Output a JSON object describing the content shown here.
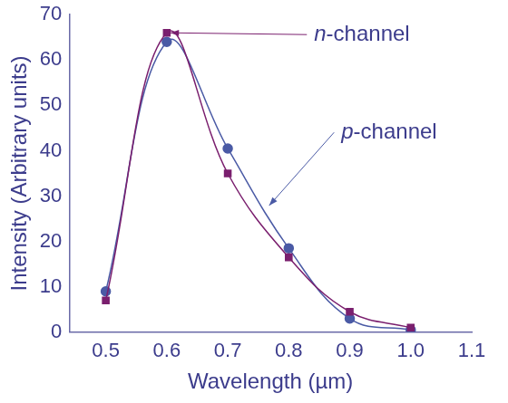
{
  "chart_data": {
    "type": "line",
    "x_label": "Wavelength (µm)",
    "y_label": "Intensity (Arbitrary units)",
    "x": [
      0.5,
      0.6,
      0.7,
      0.8,
      0.9,
      1.0
    ],
    "series": [
      {
        "name": "n-channel",
        "color": "#7a1f6e",
        "marker": "square",
        "values": [
          7,
          66,
          35,
          16.5,
          4.5,
          1
        ]
      },
      {
        "name": "p-channel",
        "color": "#4a5aa5",
        "marker": "circle",
        "values": [
          9,
          64,
          40.5,
          18.5,
          3,
          0.5
        ]
      }
    ],
    "xlim": [
      0.44,
      1.1
    ],
    "xticks": [
      0.5,
      0.6,
      0.7,
      0.8,
      0.9,
      {
        "value": 1,
        "label": "1.0"
      },
      1.1
    ],
    "ylim": [
      0,
      70
    ],
    "yticks": [
      0,
      10,
      20,
      30,
      40,
      50,
      60,
      70
    ],
    "grid": false
  }
}
